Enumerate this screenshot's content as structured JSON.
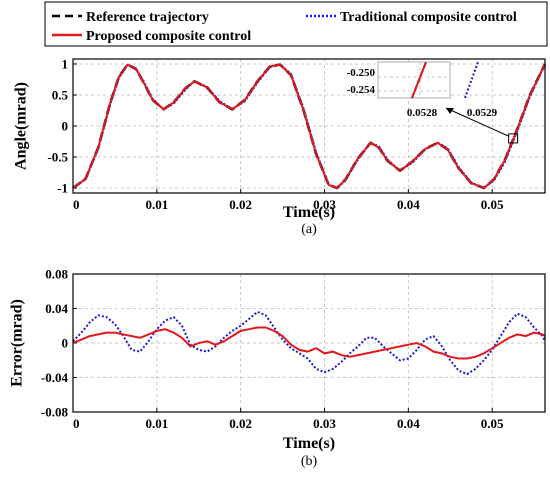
{
  "colors": {
    "reference": "#000000",
    "traditional": "#1a1adc",
    "proposed": "#e0191b"
  },
  "legend": {
    "reference": "Reference trajectory",
    "traditional": "Traditional composite control",
    "proposed": "Proposed composite control"
  },
  "chart_data": [
    {
      "id": "a",
      "type": "line",
      "caption": "(a)",
      "xlabel": "Time(s)",
      "ylabel": "Angle(mrad)",
      "xlim": [
        0,
        0.0563
      ],
      "ylim": [
        -1.08,
        1.08
      ],
      "xticks": [
        0,
        0.01,
        0.02,
        0.03,
        0.04,
        0.05
      ],
      "xtick_labels": [
        "0",
        "0.01",
        "0.02",
        "0.03",
        "0.04",
        "0.05"
      ],
      "yticks": [
        -1,
        -0.5,
        0,
        0.5,
        1
      ],
      "ytick_labels": [
        "-1",
        "-0.5",
        "0",
        "0.5",
        "1"
      ],
      "grid": true,
      "legend_position": "top (outside)",
      "series": [
        {
          "name": "Reference trajectory",
          "style": "dashed",
          "x": [
            0,
            0.0015,
            0.003,
            0.0045,
            0.0055,
            0.0065,
            0.0075,
            0.0085,
            0.0095,
            0.0108,
            0.012,
            0.0135,
            0.0145,
            0.016,
            0.0175,
            0.019,
            0.0205,
            0.022,
            0.0235,
            0.0247,
            0.026,
            0.0275,
            0.029,
            0.0305,
            0.0315,
            0.0325,
            0.034,
            0.0355,
            0.0365,
            0.0375,
            0.039,
            0.0405,
            0.042,
            0.0435,
            0.0447,
            0.046,
            0.0475,
            0.049,
            0.0502,
            0.0515,
            0.053,
            0.0545,
            0.0563
          ],
          "y": [
            -1,
            -0.85,
            -0.35,
            0.4,
            0.8,
            0.99,
            0.92,
            0.68,
            0.42,
            0.27,
            0.38,
            0.62,
            0.72,
            0.62,
            0.38,
            0.27,
            0.42,
            0.72,
            0.96,
            0.99,
            0.82,
            0.25,
            -0.45,
            -0.95,
            -1,
            -0.86,
            -0.52,
            -0.27,
            -0.35,
            -0.56,
            -0.72,
            -0.57,
            -0.37,
            -0.27,
            -0.38,
            -0.68,
            -0.92,
            -1,
            -0.86,
            -0.55,
            -0.05,
            0.5,
            1
          ]
        },
        {
          "name": "Traditional composite control",
          "style": "dotted",
          "x": [
            0,
            0.0015,
            0.003,
            0.0045,
            0.0055,
            0.0065,
            0.0075,
            0.0085,
            0.0095,
            0.0108,
            0.012,
            0.0135,
            0.0145,
            0.016,
            0.0175,
            0.019,
            0.0205,
            0.022,
            0.0235,
            0.0247,
            0.026,
            0.0275,
            0.029,
            0.0305,
            0.0315,
            0.0325,
            0.034,
            0.0355,
            0.0365,
            0.0375,
            0.039,
            0.0405,
            0.042,
            0.0435,
            0.0447,
            0.046,
            0.0475,
            0.049,
            0.0502,
            0.0515,
            0.053,
            0.0545,
            0.0563
          ],
          "y": [
            -1,
            -0.86,
            -0.37,
            0.37,
            0.78,
            0.98,
            0.93,
            0.7,
            0.44,
            0.27,
            0.36,
            0.6,
            0.72,
            0.63,
            0.4,
            0.27,
            0.4,
            0.7,
            0.95,
            0.99,
            0.84,
            0.28,
            -0.42,
            -0.94,
            -1,
            -0.88,
            -0.54,
            -0.27,
            -0.33,
            -0.54,
            -0.72,
            -0.59,
            -0.38,
            -0.27,
            -0.36,
            -0.66,
            -0.91,
            -1,
            -0.88,
            -0.58,
            -0.08,
            0.47,
            1
          ]
        },
        {
          "name": "Proposed composite control",
          "style": "solid",
          "x": [
            0,
            0.0015,
            0.003,
            0.0045,
            0.0055,
            0.0065,
            0.0075,
            0.0085,
            0.0095,
            0.0108,
            0.012,
            0.0135,
            0.0145,
            0.016,
            0.0175,
            0.019,
            0.0205,
            0.022,
            0.0235,
            0.0247,
            0.026,
            0.0275,
            0.029,
            0.0305,
            0.0315,
            0.0325,
            0.034,
            0.0355,
            0.0365,
            0.0375,
            0.039,
            0.0405,
            0.042,
            0.0435,
            0.0447,
            0.046,
            0.0475,
            0.049,
            0.0502,
            0.0515,
            0.053,
            0.0545,
            0.0563
          ],
          "y": [
            -1,
            -0.85,
            -0.35,
            0.4,
            0.8,
            0.99,
            0.92,
            0.68,
            0.42,
            0.27,
            0.38,
            0.62,
            0.72,
            0.62,
            0.38,
            0.27,
            0.42,
            0.72,
            0.96,
            0.99,
            0.82,
            0.25,
            -0.45,
            -0.95,
            -1,
            -0.86,
            -0.52,
            -0.27,
            -0.35,
            -0.56,
            -0.72,
            -0.57,
            -0.37,
            -0.27,
            -0.38,
            -0.68,
            -0.92,
            -1,
            -0.86,
            -0.55,
            -0.05,
            0.5,
            1
          ]
        }
      ],
      "inset": {
        "xtick_labels": [
          "0.0528",
          "0.0529"
        ],
        "ytick_labels": [
          "-0.250",
          "-0.254"
        ],
        "zoom_point": [
          0.0525,
          -0.2
        ]
      }
    },
    {
      "id": "b",
      "type": "line",
      "caption": "(b)",
      "xlabel": "Time(s)",
      "ylabel": "Error(mrad)",
      "xlim": [
        0,
        0.0563
      ],
      "ylim": [
        -0.08,
        0.08
      ],
      "xticks": [
        0,
        0.01,
        0.02,
        0.03,
        0.04,
        0.05
      ],
      "xtick_labels": [
        "0",
        "0.01",
        "0.02",
        "0.03",
        "0.04",
        "0.05"
      ],
      "yticks": [
        -0.08,
        -0.04,
        0,
        0.04,
        0.08
      ],
      "ytick_labels": [
        "-0.08",
        "-0.04",
        "0",
        "0.04",
        "0.08"
      ],
      "grid": true,
      "series": [
        {
          "name": "Traditional composite control",
          "style": "dotted",
          "x": [
            0,
            0.001,
            0.002,
            0.003,
            0.004,
            0.005,
            0.006,
            0.007,
            0.008,
            0.009,
            0.01,
            0.011,
            0.012,
            0.013,
            0.014,
            0.015,
            0.016,
            0.017,
            0.018,
            0.019,
            0.02,
            0.021,
            0.022,
            0.023,
            0.024,
            0.025,
            0.026,
            0.027,
            0.028,
            0.029,
            0.03,
            0.031,
            0.032,
            0.033,
            0.034,
            0.035,
            0.036,
            0.037,
            0.038,
            0.039,
            0.04,
            0.041,
            0.042,
            0.043,
            0.044,
            0.045,
            0.046,
            0.047,
            0.048,
            0.049,
            0.05,
            0.051,
            0.052,
            0.053,
            0.054,
            0.055,
            0.056,
            0.0563
          ],
          "y": [
            0.002,
            0.012,
            0.024,
            0.032,
            0.03,
            0.022,
            0.008,
            -0.008,
            -0.01,
            0.002,
            0.016,
            0.026,
            0.03,
            0.02,
            -0.002,
            -0.008,
            -0.01,
            -0.004,
            0.006,
            0.014,
            0.02,
            0.028,
            0.036,
            0.032,
            0.018,
            0.004,
            -0.006,
            -0.012,
            -0.018,
            -0.03,
            -0.034,
            -0.03,
            -0.022,
            -0.012,
            -0.004,
            0.006,
            0.006,
            -0.004,
            -0.012,
            -0.02,
            -0.018,
            -0.008,
            0.004,
            0.008,
            -0.004,
            -0.02,
            -0.032,
            -0.036,
            -0.03,
            -0.02,
            -0.008,
            0.008,
            0.024,
            0.034,
            0.03,
            0.018,
            0.008,
            0.002
          ]
        },
        {
          "name": "Proposed composite control",
          "style": "solid",
          "x": [
            0,
            0.001,
            0.002,
            0.003,
            0.004,
            0.005,
            0.006,
            0.007,
            0.008,
            0.009,
            0.01,
            0.011,
            0.012,
            0.013,
            0.014,
            0.015,
            0.016,
            0.017,
            0.018,
            0.019,
            0.02,
            0.021,
            0.022,
            0.023,
            0.024,
            0.025,
            0.026,
            0.027,
            0.028,
            0.029,
            0.03,
            0.031,
            0.032,
            0.033,
            0.034,
            0.035,
            0.036,
            0.037,
            0.038,
            0.039,
            0.04,
            0.041,
            0.042,
            0.043,
            0.044,
            0.045,
            0.046,
            0.047,
            0.048,
            0.049,
            0.05,
            0.051,
            0.052,
            0.053,
            0.054,
            0.055,
            0.056,
            0.0563
          ],
          "y": [
            0,
            0.004,
            0.008,
            0.01,
            0.012,
            0.012,
            0.01,
            0.008,
            0.006,
            0.01,
            0.014,
            0.016,
            0.012,
            0.006,
            -0.004,
            0,
            0.002,
            -0.002,
            0.002,
            0.008,
            0.014,
            0.016,
            0.018,
            0.018,
            0.014,
            0.008,
            -0.002,
            -0.008,
            -0.01,
            -0.006,
            -0.012,
            -0.01,
            -0.014,
            -0.016,
            -0.014,
            -0.012,
            -0.01,
            -0.008,
            -0.006,
            -0.004,
            -0.002,
            0,
            -0.004,
            -0.01,
            -0.012,
            -0.016,
            -0.018,
            -0.018,
            -0.016,
            -0.012,
            -0.006,
            0,
            0.006,
            0.01,
            0.008,
            0.012,
            0.01,
            0.008
          ]
        }
      ]
    }
  ]
}
